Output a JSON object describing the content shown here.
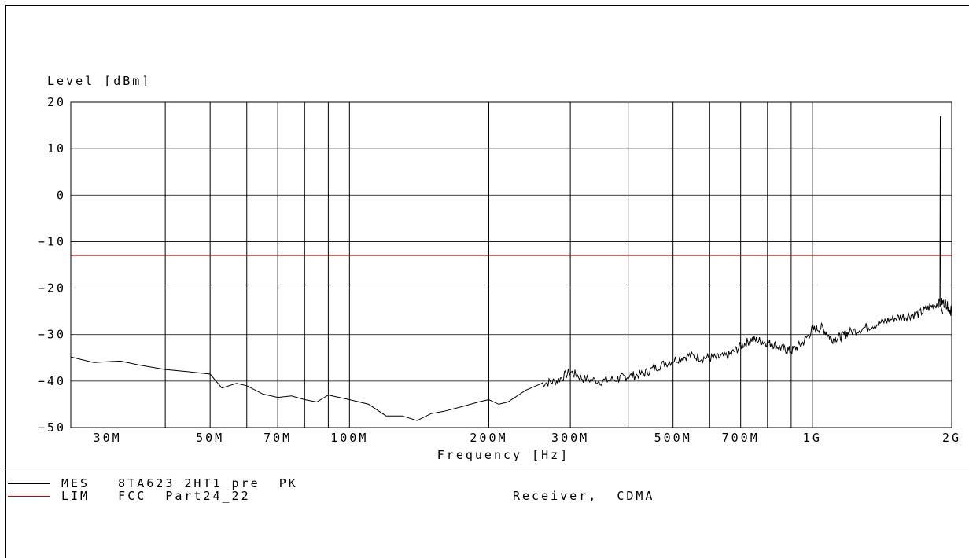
{
  "chart_data": {
    "type": "line",
    "ylabel": "Level  [dBm]",
    "xlabel": "Frequency  [Hz]",
    "x_scale": "log",
    "xlim": [
      25000000,
      2000000000
    ],
    "ylim": [
      -50,
      20
    ],
    "y_ticks": [
      20,
      10,
      0,
      -10,
      -20,
      -30,
      -40,
      -50
    ],
    "y_tick_labels": [
      "20",
      "10",
      "0",
      "-10",
      "-20",
      "-30",
      "-40",
      "-50"
    ],
    "x_tick_labels": [
      {
        "label": "30M",
        "value": 30000000
      },
      {
        "label": "50M",
        "value": 50000000
      },
      {
        "label": "70M",
        "value": 70000000
      },
      {
        "label": "100M",
        "value": 100000000
      },
      {
        "label": "200M",
        "value": 200000000
      },
      {
        "label": "300M",
        "value": 300000000
      },
      {
        "label": "500M",
        "value": 500000000
      },
      {
        "label": "700M",
        "value": 700000000
      },
      {
        "label": "1G",
        "value": 1000000000
      },
      {
        "label": "2G",
        "value": 2000000000
      }
    ],
    "x_gridlines": [
      40000000,
      50000000,
      60000000,
      70000000,
      80000000,
      90000000,
      100000000,
      200000000,
      300000000,
      400000000,
      500000000,
      600000000,
      700000000,
      800000000,
      900000000,
      1000000000
    ],
    "grid": true,
    "series": [
      {
        "name": "MES",
        "color": "#000000",
        "points": [
          [
            25000000,
            -34.8
          ],
          [
            28000000,
            -36.0
          ],
          [
            32000000,
            -35.7
          ],
          [
            35000000,
            -36.5
          ],
          [
            40000000,
            -37.5
          ],
          [
            45000000,
            -38.0
          ],
          [
            50000000,
            -38.5
          ],
          [
            53000000,
            -41.5
          ],
          [
            57000000,
            -40.5
          ],
          [
            60000000,
            -41.0
          ],
          [
            65000000,
            -42.8
          ],
          [
            70000000,
            -43.5
          ],
          [
            75000000,
            -43.2
          ],
          [
            80000000,
            -44.0
          ],
          [
            85000000,
            -44.5
          ],
          [
            90000000,
            -43.0
          ],
          [
            95000000,
            -43.5
          ],
          [
            100000000,
            -44.0
          ],
          [
            110000000,
            -45.0
          ],
          [
            120000000,
            -47.5
          ],
          [
            130000000,
            -47.5
          ],
          [
            140000000,
            -48.5
          ],
          [
            150000000,
            -47.0
          ],
          [
            160000000,
            -46.5
          ],
          [
            175000000,
            -45.5
          ],
          [
            190000000,
            -44.5
          ],
          [
            200000000,
            -44.0
          ],
          [
            210000000,
            -45.0
          ],
          [
            220000000,
            -44.5
          ],
          [
            240000000,
            -42.0
          ],
          [
            260000000,
            -40.5
          ],
          [
            280000000,
            -40.0
          ],
          [
            300000000,
            -38.0
          ],
          [
            320000000,
            -39.5
          ],
          [
            350000000,
            -40.0
          ],
          [
            380000000,
            -39.5
          ],
          [
            400000000,
            -39.0
          ],
          [
            430000000,
            -38.5
          ],
          [
            460000000,
            -37.0
          ],
          [
            500000000,
            -35.5
          ],
          [
            540000000,
            -34.5
          ],
          [
            580000000,
            -35.0
          ],
          [
            620000000,
            -35.0
          ],
          [
            660000000,
            -34.5
          ],
          [
            700000000,
            -32.5
          ],
          [
            740000000,
            -31.0
          ],
          [
            780000000,
            -31.5
          ],
          [
            820000000,
            -32.0
          ],
          [
            860000000,
            -33.0
          ],
          [
            900000000,
            -33.5
          ],
          [
            950000000,
            -32.0
          ],
          [
            1000000000,
            -29.0
          ],
          [
            1050000000,
            -28.5
          ],
          [
            1100000000,
            -31.0
          ],
          [
            1150000000,
            -30.5
          ],
          [
            1200000000,
            -29.5
          ],
          [
            1300000000,
            -28.5
          ],
          [
            1400000000,
            -27.5
          ],
          [
            1500000000,
            -26.5
          ],
          [
            1600000000,
            -26.0
          ],
          [
            1700000000,
            -25.5
          ],
          [
            1800000000,
            -24.0
          ],
          [
            1900000000,
            -23.0
          ],
          [
            1950000000,
            -23.5
          ],
          [
            1990000000,
            -25.0
          ],
          [
            2000000000,
            -24.0
          ]
        ],
        "spike": {
          "x": 1890000000,
          "y": 17
        }
      },
      {
        "name": "LIM",
        "color": "#cc0000",
        "points": [
          [
            25000000,
            -13
          ],
          [
            2000000000,
            -13
          ]
        ]
      }
    ]
  },
  "legend": {
    "mes_label": "MES   8TA623_2HT1_pre  PK",
    "lim_label": "LIM   FCC  Part24_22",
    "note": "Receiver,  CDMA"
  }
}
